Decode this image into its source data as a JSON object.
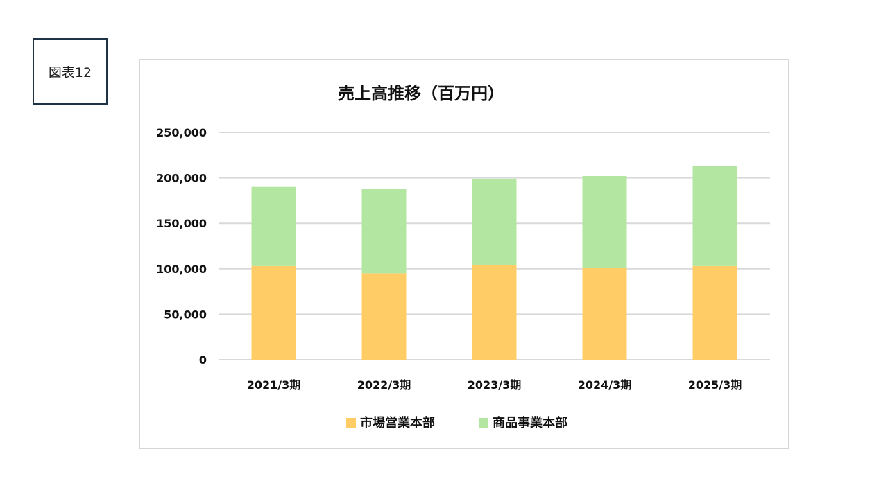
{
  "figure_label": "図表12",
  "chart_data": {
    "type": "bar",
    "stacked": true,
    "title": "売上高推移（百万円）",
    "categories": [
      "2021/3期",
      "2022/3期",
      "2023/3期",
      "2024/3期",
      "2025/3期"
    ],
    "series": [
      {
        "name": "市場営業本部",
        "color": "#FFCC66",
        "values": [
          103000,
          95000,
          104000,
          101000,
          103000
        ]
      },
      {
        "name": "商品事業本部",
        "color": "#B3E6A1",
        "values": [
          87000,
          93000,
          95000,
          101000,
          110000
        ]
      }
    ],
    "ylim": [
      0,
      250000
    ],
    "yticks": [
      0,
      50000,
      100000,
      150000,
      200000,
      250000
    ],
    "ytick_labels": [
      "0",
      "50,000",
      "100,000",
      "150,000",
      "200,000",
      "250,000"
    ],
    "grid": true,
    "legend_position": "bottom"
  }
}
